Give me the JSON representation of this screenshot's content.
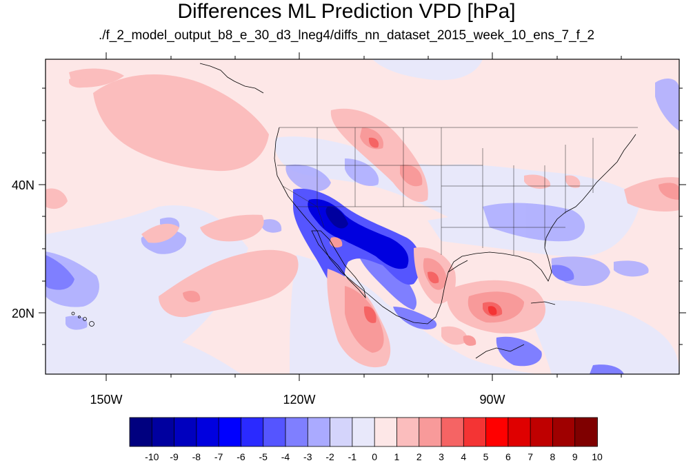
{
  "title": "Differences ML Prediction VPD [hPa]",
  "subtitle": "./f_2_model_output_b8_e_30_d3_lneg4/diffs_nn_dataset_2015_week_10_ens_7_f_2",
  "axes": {
    "lat_labels": [
      "40N",
      "20N"
    ],
    "lon_labels": [
      "150W",
      "120W",
      "90W"
    ]
  },
  "colorbar": {
    "labels": [
      "-10",
      "-9",
      "-8",
      "-7",
      "-6",
      "-5",
      "-4",
      "-3",
      "-2",
      "-1",
      "0",
      "1",
      "2",
      "3",
      "4",
      "5",
      "6",
      "7",
      "8",
      "9",
      "10"
    ],
    "colors": [
      "#00007f",
      "#00009f",
      "#0000bf",
      "#0000df",
      "#0000ff",
      "#2a2aff",
      "#5555ff",
      "#7f7fff",
      "#aaaaff",
      "#d4d4fb",
      "#e8e8fa",
      "#fde7e7",
      "#fbbdbd",
      "#f89a9a",
      "#f56464",
      "#f43434",
      "#ff0000",
      "#df0000",
      "#bf0000",
      "#9f0000",
      "#7f0000"
    ]
  },
  "colors": {
    "background": "#fde7e7",
    "light_blue": "#e8e8fa",
    "pale_blue": "#d4d4fb",
    "mid_blue": "#aaaaff",
    "blue": "#7f7fff",
    "strong_blue": "#5555ff",
    "deep_blue": "#0000df",
    "pink": "#fbbdbd",
    "salmon": "#f89a9a",
    "red": "#f56464",
    "deep_red": "#f43434"
  }
}
